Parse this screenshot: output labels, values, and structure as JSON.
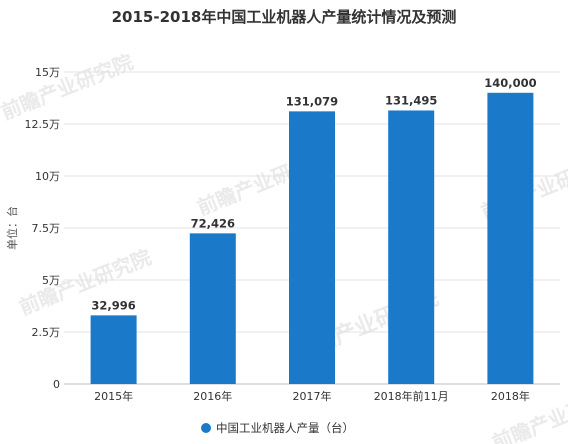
{
  "chart_data": {
    "type": "bar",
    "title": "2015-2018年中国工业机器人产量统计情况及预测",
    "ylabel": "单位：台",
    "categories": [
      "2015年",
      "2016年",
      "2017年",
      "2018年前11月",
      "2018年"
    ],
    "series": [
      {
        "name": "中国工业机器人产量（台）",
        "values": [
          32996,
          72426,
          131079,
          131495,
          140000
        ]
      }
    ],
    "data_labels": [
      "32,996",
      "72,426",
      "131,079",
      "131,495",
      "140,000"
    ],
    "ylim": [
      0,
      150000
    ],
    "yticks": [
      0,
      25000,
      50000,
      75000,
      100000,
      125000,
      150000
    ],
    "ytick_labels": [
      "0",
      "2.5万",
      "5万",
      "7.5万",
      "10万",
      "12.5万",
      "15万"
    ],
    "grid": true,
    "legend_position": "bottom",
    "colors": {
      "bar": "#1a7ac9"
    }
  },
  "watermark": "前瞻产业研究院"
}
